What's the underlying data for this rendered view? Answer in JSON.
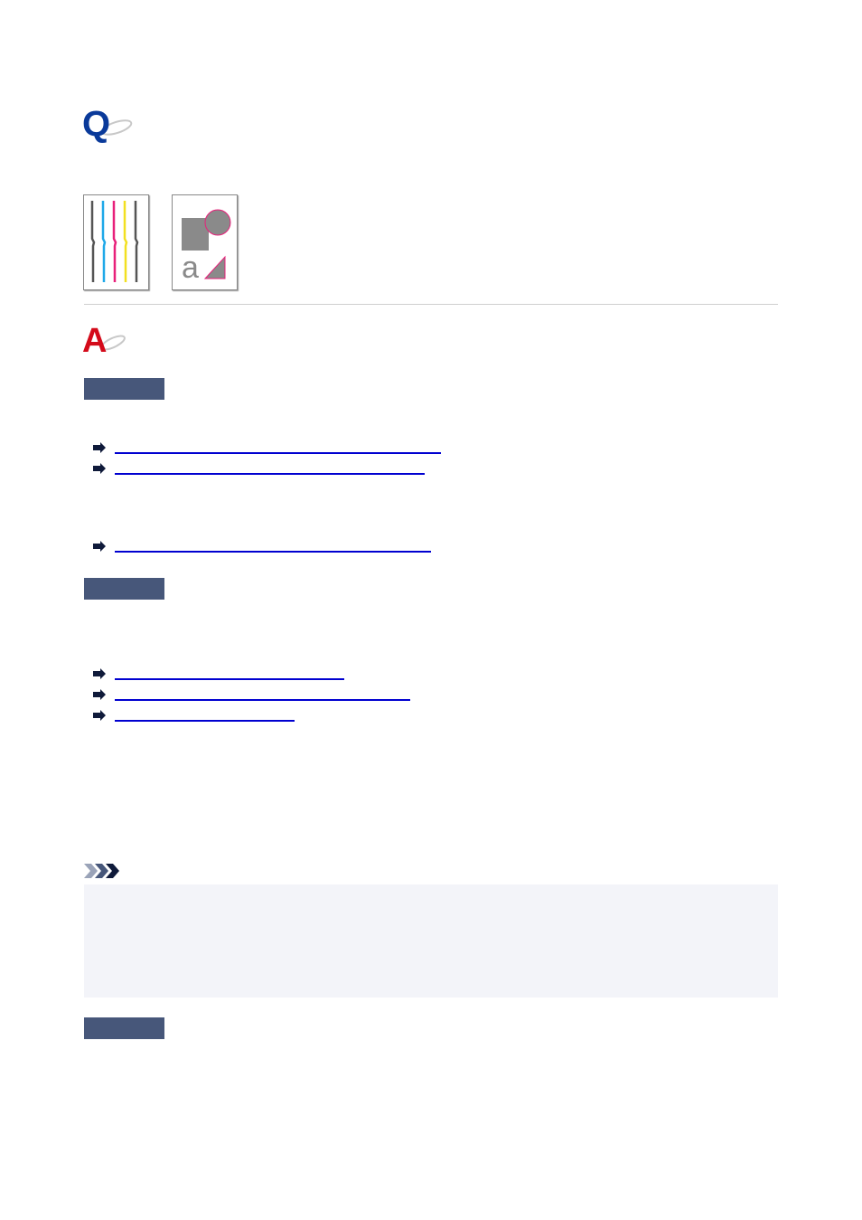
{
  "logos": {
    "question": "Q",
    "answer": "A"
  },
  "illustration": {
    "letter": "a",
    "line_colors": [
      "#555555",
      "#1ea8e8",
      "#e8207a",
      "#f2e020",
      "#555555"
    ]
  },
  "colors": {
    "question": "#0a3a9a",
    "answer": "#d40a1a",
    "section_bar": "#47577a",
    "link": "#0000d0",
    "note_bg": "#f3f4f9"
  },
  "icons": {
    "link_arrow": "right-arrow-icon",
    "note": "note-chevrons-icon"
  }
}
